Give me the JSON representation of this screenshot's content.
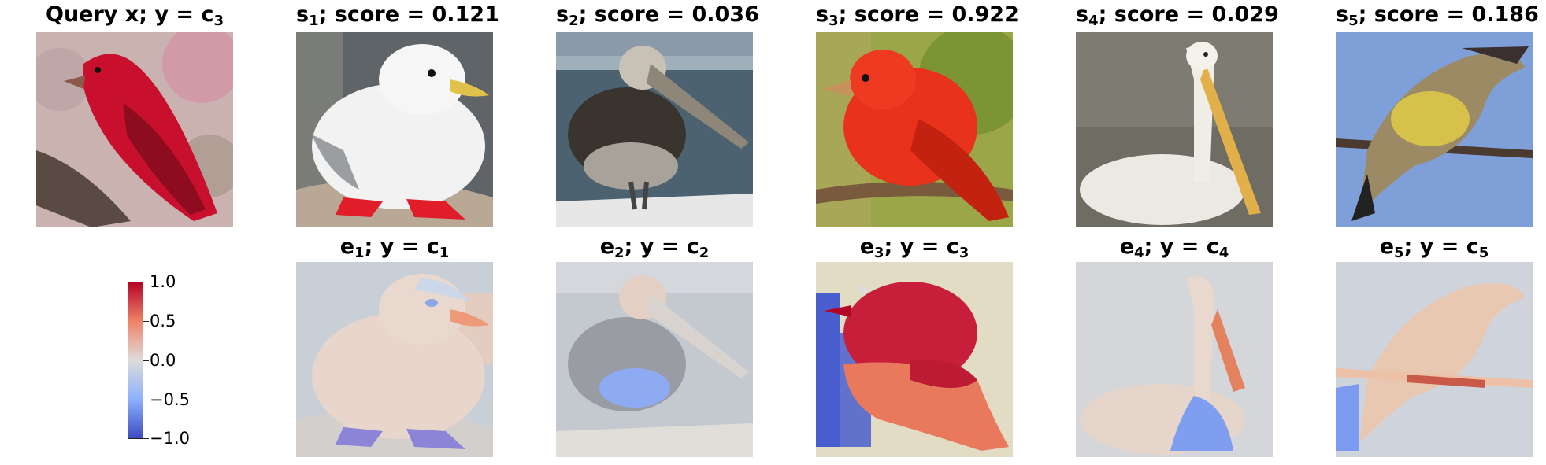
{
  "top_row": [
    {
      "prefix": "Query x; y = c",
      "sub": "3",
      "suffix": ""
    },
    {
      "prefix": "s",
      "sub": "1",
      "suffix": "; score = 0.121"
    },
    {
      "prefix": "s",
      "sub": "2",
      "suffix": "; score = 0.036"
    },
    {
      "prefix": "s",
      "sub": "3",
      "suffix": "; score = 0.922"
    },
    {
      "prefix": "s",
      "sub": "4",
      "suffix": "; score = 0.029"
    },
    {
      "prefix": "s",
      "sub": "5",
      "suffix": "; score = 0.186"
    }
  ],
  "bottom_row": [
    {
      "prefix": "e",
      "sub": "1",
      "mid": "; y = c",
      "sub2": "1"
    },
    {
      "prefix": "e",
      "sub": "2",
      "mid": "; y = c",
      "sub2": "2"
    },
    {
      "prefix": "e",
      "sub": "3",
      "mid": "; y = c",
      "sub2": "3"
    },
    {
      "prefix": "e",
      "sub": "4",
      "mid": "; y = c",
      "sub2": "4"
    },
    {
      "prefix": "e",
      "sub": "5",
      "mid": "; y = c",
      "sub2": "5"
    }
  ],
  "colorbar": {
    "ticks": [
      "1.0",
      "0.5",
      "0.0",
      "−0.5",
      "−1.0"
    ],
    "colors": [
      "#b40426",
      "#ee8468",
      "#dddcdc",
      "#8db0fe",
      "#3b4cc0"
    ]
  }
}
